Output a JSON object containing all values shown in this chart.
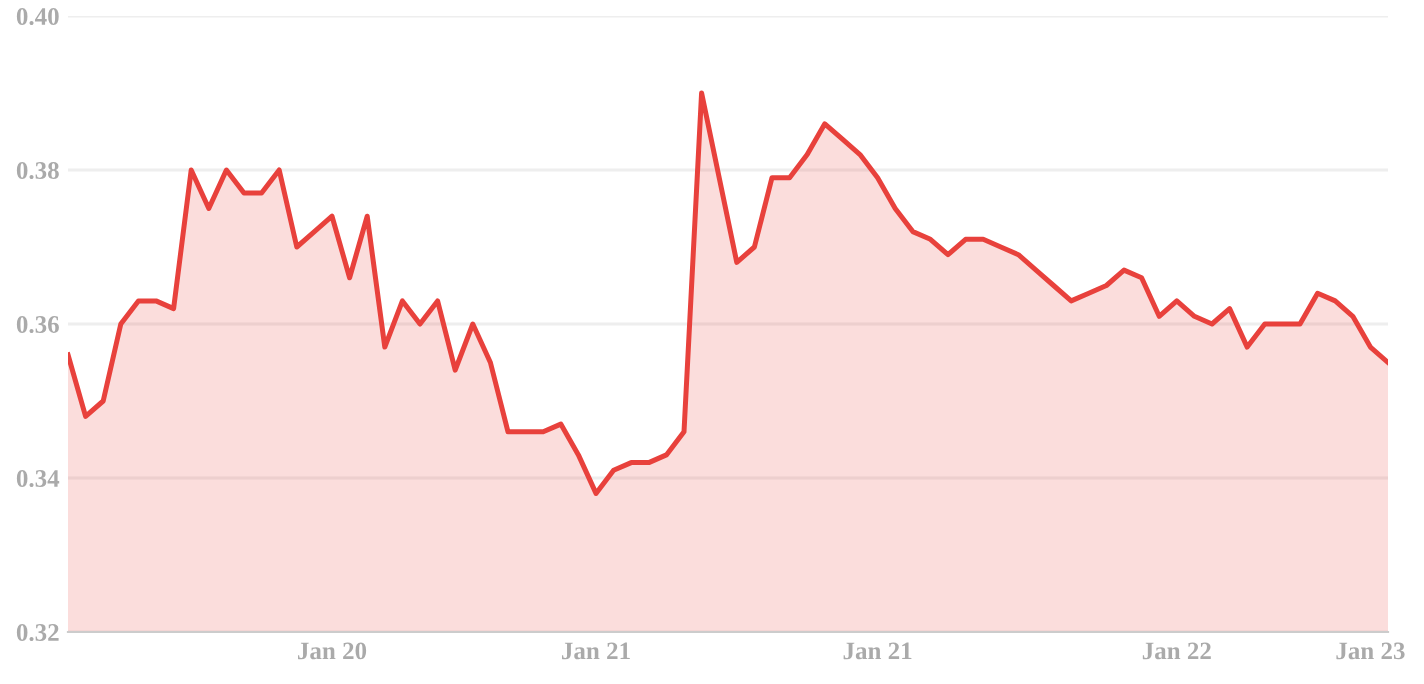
{
  "chart_data": {
    "type": "area",
    "categories": [
      null,
      null,
      null,
      null,
      null,
      null,
      null,
      null,
      null,
      null,
      null,
      null,
      null,
      null,
      null,
      "Jan 20",
      null,
      null,
      null,
      null,
      null,
      null,
      null,
      null,
      null,
      null,
      null,
      null,
      null,
      null,
      "Jan 21",
      null,
      null,
      null,
      null,
      null,
      null,
      null,
      null,
      null,
      null,
      null,
      null,
      null,
      null,
      null,
      "Jan 21",
      null,
      null,
      null,
      null,
      null,
      null,
      null,
      null,
      null,
      null,
      null,
      null,
      null,
      null,
      null,
      null,
      "Jan 22",
      null,
      null,
      null,
      null,
      null,
      null,
      null,
      null,
      null,
      null,
      "Jan 23",
      null
    ],
    "series": [
      {
        "color": "#e8413c",
        "values": [
          0.356,
          0.348,
          0.35,
          0.36,
          0.363,
          0.363,
          0.362,
          0.38,
          0.375,
          0.38,
          0.377,
          0.377,
          0.38,
          0.37,
          0.372,
          0.374,
          0.366,
          0.374,
          0.357,
          0.363,
          0.36,
          0.363,
          0.354,
          0.36,
          0.355,
          0.346,
          0.346,
          0.346,
          0.347,
          0.343,
          0.338,
          0.341,
          0.342,
          0.342,
          0.343,
          0.346,
          0.39,
          0.379,
          0.368,
          0.37,
          0.379,
          0.379,
          0.382,
          0.386,
          0.384,
          0.382,
          0.379,
          0.375,
          0.372,
          0.371,
          0.369,
          0.371,
          0.371,
          0.37,
          0.369,
          0.367,
          0.365,
          0.363,
          0.364,
          0.365,
          0.367,
          0.366,
          0.361,
          0.363,
          0.361,
          0.36,
          0.362,
          0.357,
          0.36,
          0.36,
          0.36,
          0.364,
          0.363,
          0.361,
          0.357,
          0.355
        ]
      }
    ],
    "ylim": [
      0.32,
      0.4
    ],
    "yticks": [
      {
        "value": 0.32,
        "label": "0.32"
      },
      {
        "value": 0.34,
        "label": "0.34"
      },
      {
        "value": 0.36,
        "label": "0.36"
      },
      {
        "value": 0.38,
        "label": "0.38"
      },
      {
        "value": 0.4,
        "label": "0.40"
      }
    ],
    "grid": "y"
  }
}
